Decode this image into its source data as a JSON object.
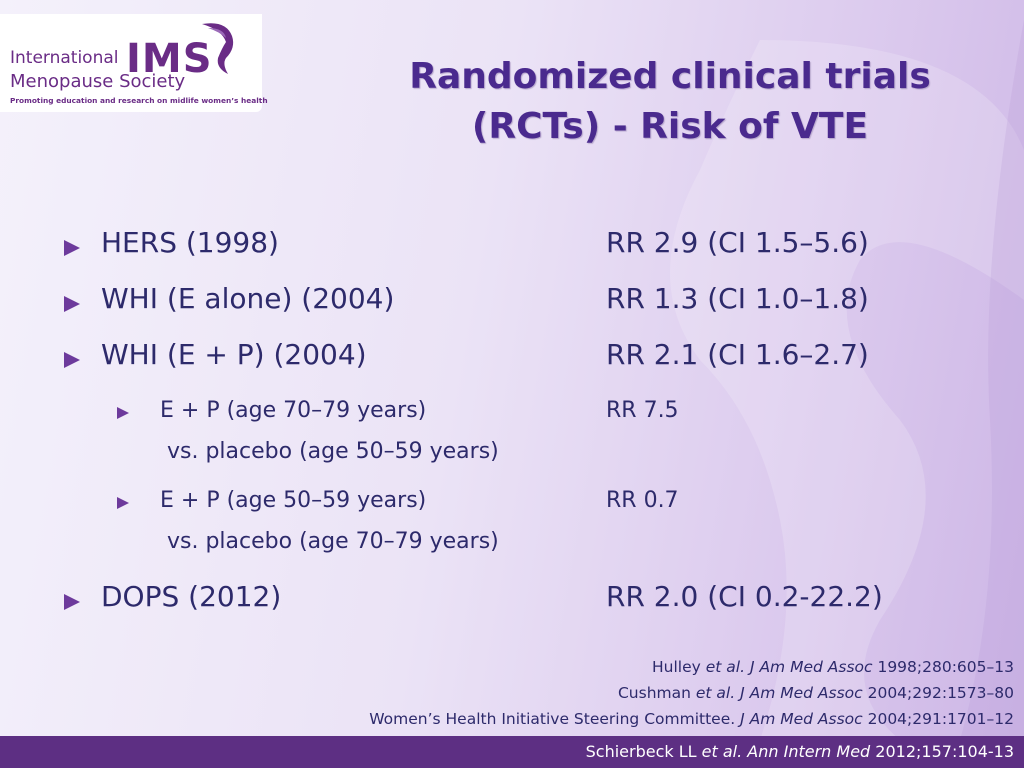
{
  "logo": {
    "line1": "International",
    "mark": "IMS",
    "line2": "Menopause Society",
    "tagline": "Promoting education and research on midlife women’s health",
    "color": "#6a2c86"
  },
  "title": {
    "line1": "Randomized clinical trials",
    "line2": "(RCTs) - Risk of VTE"
  },
  "items": [
    {
      "label": "HERS (1998)",
      "rr": "RR 2.9 (CI 1.5–5.6)"
    },
    {
      "label": "WHI (E alone) (2004)",
      "rr": "RR 1.3 (CI 1.0–1.8)"
    },
    {
      "label": "WHI (E + P) (2004)",
      "rr": "RR 2.1 (CI 1.6–2.7)"
    },
    {
      "label": "E + P (age 70–79 years)",
      "sub": "vs. placebo (age 50–59 years)",
      "rr": "RR 7.5"
    },
    {
      "label": "E + P (age 50–59 years)",
      "sub": "vs. placebo (age 70–79 years)",
      "rr": "RR 0.7"
    },
    {
      "label": "DOPS (2012)",
      "rr": "RR 2.0 (CI  0.2-22.2)"
    }
  ],
  "references": [
    {
      "author": "Hulley ",
      "etal": "et al.",
      "journal": " J Am Med Assoc",
      "citation": " 1998;280:605–13"
    },
    {
      "author": "Cushman ",
      "etal": "et al.",
      "journal": " J Am Med Assoc",
      "citation": " 2004;292:1573–80"
    },
    {
      "author": "Women’s Health Initiative Steering Committee.",
      "etal": "",
      "journal": " J Am Med Assoc",
      "citation": " 2004;291:1701–12"
    },
    {
      "author": "Schierbeck LL ",
      "etal": "et al.",
      "journal": " Ann Intern Med",
      "citation": " 2012;157:104-13"
    }
  ],
  "colors": {
    "title": "#4a2a8e",
    "text": "#2d2a6b",
    "bullet": "#6d3a9c",
    "footer": "#5d2f83"
  }
}
